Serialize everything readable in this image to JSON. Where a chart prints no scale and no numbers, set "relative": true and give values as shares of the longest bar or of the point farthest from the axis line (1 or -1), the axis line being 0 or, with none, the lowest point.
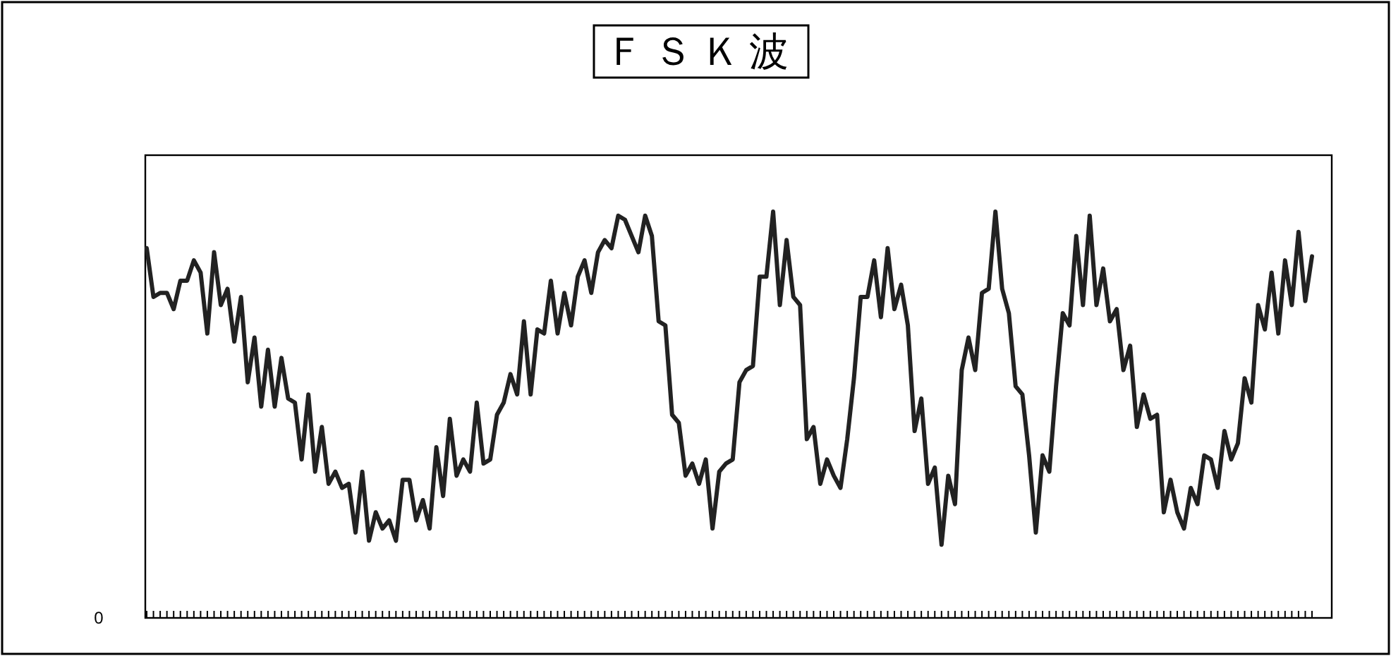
{
  "chart_data": {
    "type": "line",
    "title": "ＦＳＫ波",
    "relative": true,
    "categories": [
      null,
      null,
      null,
      null,
      null,
      null,
      null,
      null,
      null,
      null,
      null,
      null,
      null,
      null,
      null,
      null,
      null,
      null,
      null,
      null,
      null,
      null,
      null,
      null,
      null,
      null,
      null,
      null,
      null,
      null,
      null,
      null,
      null,
      null,
      null,
      null,
      null,
      null,
      null,
      null,
      null,
      null,
      null,
      null,
      null,
      null,
      null,
      null,
      null,
      null,
      null,
      null,
      null,
      null,
      null,
      null,
      null,
      null,
      null,
      null,
      null,
      null,
      null,
      null,
      null,
      null,
      null,
      null,
      null,
      null,
      null,
      null,
      null,
      null,
      null,
      null,
      null,
      null,
      null,
      null,
      null,
      null,
      null,
      null,
      null,
      null,
      null,
      null,
      null,
      null,
      null,
      null,
      null,
      null,
      null,
      null,
      null,
      null,
      null,
      null,
      null,
      null,
      null,
      null,
      null,
      null,
      null,
      null,
      null,
      null,
      null,
      null,
      null,
      null,
      null,
      null,
      null,
      null,
      null,
      null,
      null,
      null,
      null,
      null,
      null,
      null,
      null,
      null,
      null,
      null,
      null,
      null,
      null,
      null,
      null,
      null,
      null,
      null,
      null,
      null,
      null,
      null,
      null,
      null,
      null,
      null,
      null,
      null,
      null,
      null,
      null,
      null,
      null,
      null,
      null,
      null,
      null,
      null,
      null,
      null,
      null,
      null,
      null,
      null,
      null,
      null,
      null,
      null,
      null,
      null,
      null,
      null,
      null,
      null
    ],
    "series": [
      {
        "color": "#222222",
        "values": [
          0.91,
          0.79,
          0.8,
          0.8,
          0.76,
          0.83,
          0.83,
          0.88,
          0.85,
          0.7,
          0.9,
          0.77,
          0.81,
          0.68,
          0.79,
          0.58,
          0.69,
          0.52,
          0.66,
          0.52,
          0.64,
          0.54,
          0.53,
          0.39,
          0.55,
          0.36,
          0.47,
          0.33,
          0.36,
          0.32,
          0.33,
          0.21,
          0.36,
          0.19,
          0.26,
          0.22,
          0.24,
          0.19,
          0.34,
          0.34,
          0.24,
          0.29,
          0.22,
          0.42,
          0.3,
          0.49,
          0.35,
          0.39,
          0.36,
          0.53,
          0.38,
          0.39,
          0.5,
          0.53,
          0.6,
          0.55,
          0.73,
          0.55,
          0.71,
          0.7,
          0.83,
          0.7,
          0.8,
          0.72,
          0.84,
          0.88,
          0.8,
          0.9,
          0.93,
          0.91,
          0.99,
          0.98,
          0.94,
          0.9,
          0.99,
          0.94,
          0.73,
          0.72,
          0.5,
          0.48,
          0.35,
          0.38,
          0.33,
          0.39,
          0.22,
          0.36,
          0.38,
          0.39,
          0.58,
          0.61,
          0.62,
          0.84,
          0.84,
          1.0,
          0.77,
          0.93,
          0.79,
          0.77,
          0.44,
          0.47,
          0.33,
          0.39,
          0.35,
          0.32,
          0.44,
          0.59,
          0.79,
          0.79,
          0.88,
          0.74,
          0.91,
          0.76,
          0.82,
          0.72,
          0.46,
          0.54,
          0.33,
          0.37,
          0.18,
          0.35,
          0.28,
          0.61,
          0.69,
          0.61,
          0.8,
          0.81,
          1.0,
          0.81,
          0.75,
          0.57,
          0.55,
          0.4,
          0.21,
          0.4,
          0.36,
          0.57,
          0.75,
          0.72,
          0.94,
          0.77,
          0.99,
          0.77,
          0.86,
          0.73,
          0.76,
          0.61,
          0.67,
          0.47,
          0.55,
          0.49,
          0.5,
          0.26,
          0.34,
          0.26,
          0.22,
          0.32,
          0.28,
          0.4,
          0.39,
          0.32,
          0.46,
          0.39,
          0.43,
          0.59,
          0.53,
          0.77,
          0.71,
          0.85,
          0.7,
          0.88,
          0.77,
          0.95,
          0.78,
          0.89
        ]
      }
    ],
    "annotations": [
      "0"
    ]
  }
}
